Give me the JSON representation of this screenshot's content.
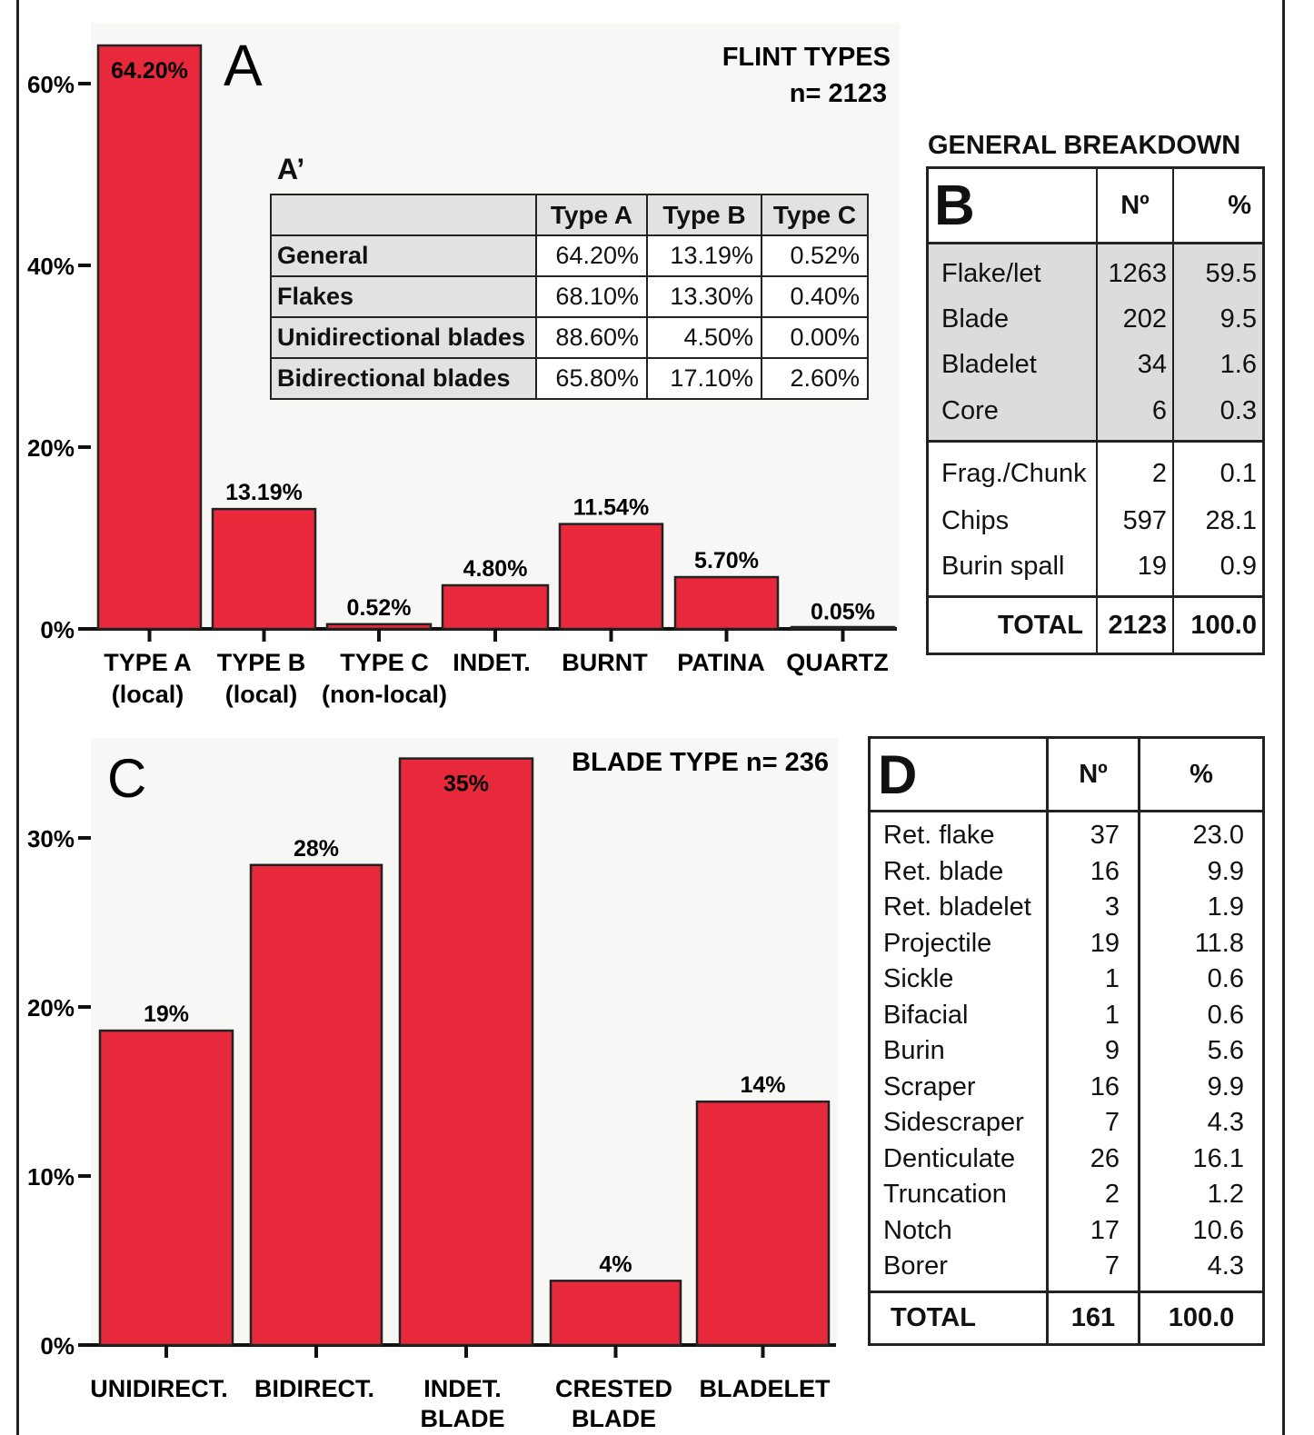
{
  "chart_data": [
    {
      "id": "A",
      "type": "bar",
      "panel_letter": "A",
      "title": "FLINT TYPES",
      "subtitle": "n= 2123",
      "categories": [
        [
          "TYPE A",
          "(local)"
        ],
        [
          "TYPE B",
          "(local)"
        ],
        [
          "TYPE C",
          "(non-local)"
        ],
        [
          "INDET."
        ],
        [
          "BURNT"
        ],
        [
          "PATINA"
        ],
        [
          "QUARTZ"
        ]
      ],
      "values": [
        64.2,
        13.19,
        0.52,
        4.8,
        11.54,
        5.7,
        0.05
      ],
      "value_labels": [
        "64.20%",
        "13.19%",
        "0.52%",
        "4.80%",
        "11.54%",
        "5.70%",
        "0.05%"
      ],
      "yticks": [
        {
          "v": 0,
          "label": "0%"
        },
        {
          "v": 20,
          "label": "20%"
        },
        {
          "v": 40,
          "label": "40%"
        },
        {
          "v": 60,
          "label": "60%"
        }
      ],
      "ylim": [
        0,
        66
      ],
      "bar_color": "#e8283b"
    },
    {
      "id": "C",
      "type": "bar",
      "panel_letter": "C",
      "title": "BLADE TYPE n= 236",
      "categories": [
        [
          "UNIDIRECT."
        ],
        [
          "BIDIRECT."
        ],
        [
          "INDET.",
          "BLADE"
        ],
        [
          "CRESTED",
          "BLADE"
        ],
        [
          "BLADELET"
        ]
      ],
      "values": [
        18.6,
        28.4,
        34.7,
        3.8,
        14.4
      ],
      "value_labels": [
        "19%",
        "28%",
        "35%",
        "4%",
        "14%"
      ],
      "yticks": [
        {
          "v": 0,
          "label": "0%"
        },
        {
          "v": 10,
          "label": "10%"
        },
        {
          "v": 20,
          "label": "20%"
        },
        {
          "v": 30,
          "label": "30%"
        }
      ],
      "ylim": [
        0,
        35
      ],
      "bar_color": "#e8283b"
    }
  ],
  "inset_table": {
    "label": "A’",
    "columns": [
      "",
      "Type A",
      "Type B",
      "Type C"
    ],
    "rows": [
      {
        "name": "General",
        "a": "64.20%",
        "b": "13.19%",
        "c": "0.52%"
      },
      {
        "name": "Flakes",
        "a": "68.10%",
        "b": "13.30%",
        "c": "0.40%"
      },
      {
        "name": "Unidirectional blades",
        "a": "88.60%",
        "b": "4.50%",
        "c": "0.00%"
      },
      {
        "name": "Bidirectional blades",
        "a": "65.80%",
        "b": "17.10%",
        "c": "2.60%"
      }
    ]
  },
  "table_b": {
    "heading": "GENERAL BREAKDOWN",
    "letter": "B",
    "col_n": "Nº",
    "col_pct": "%",
    "grey_rows": [
      {
        "name": "Flake/let",
        "n": "1263",
        "pct": "59.5"
      },
      {
        "name": "Blade",
        "n": "202",
        "pct": "9.5"
      },
      {
        "name": "Bladelet",
        "n": "34",
        "pct": "1.6"
      },
      {
        "name": "Core",
        "n": "6",
        "pct": "0.3"
      }
    ],
    "white_rows": [
      {
        "name": "Frag./Chunk",
        "n": "2",
        "pct": "0.1"
      },
      {
        "name": "Chips",
        "n": "597",
        "pct": "28.1"
      },
      {
        "name": "Burin spall",
        "n": "19",
        "pct": "0.9"
      }
    ],
    "total": {
      "name": "TOTAL",
      "n": "2123",
      "pct": "100.0"
    }
  },
  "table_d": {
    "letter": "D",
    "col_n": "Nº",
    "col_pct": "%",
    "rows": [
      {
        "name": "Ret. flake",
        "n": "37",
        "pct": "23.0"
      },
      {
        "name": "Ret. blade",
        "n": "16",
        "pct": "9.9"
      },
      {
        "name": "Ret. bladelet",
        "n": "3",
        "pct": "1.9"
      },
      {
        "name": "Projectile",
        "n": "19",
        "pct": "11.8"
      },
      {
        "name": "Sickle",
        "n": "1",
        "pct": "0.6"
      },
      {
        "name": "Bifacial",
        "n": "1",
        "pct": "0.6"
      },
      {
        "name": "Burin",
        "n": "9",
        "pct": "5.6"
      },
      {
        "name": "Scraper",
        "n": "16",
        "pct": "9.9"
      },
      {
        "name": "Sidescraper",
        "n": "7",
        "pct": "4.3"
      },
      {
        "name": "Denticulate",
        "n": "26",
        "pct": "16.1"
      },
      {
        "name": "Truncation",
        "n": "2",
        "pct": "1.2"
      },
      {
        "name": "Notch",
        "n": "17",
        "pct": "10.6"
      },
      {
        "name": "Borer",
        "n": "7",
        "pct": "4.3"
      }
    ],
    "total": {
      "name": "TOTAL",
      "n": "161",
      "pct": "100.0"
    }
  }
}
